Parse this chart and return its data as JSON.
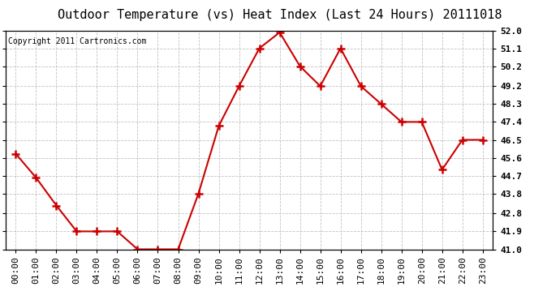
{
  "title": "Outdoor Temperature (vs) Heat Index (Last 24 Hours) 20111018",
  "copyright": "Copyright 2011 Cartronics.com",
  "x_labels": [
    "00:00",
    "01:00",
    "02:00",
    "03:00",
    "04:00",
    "05:00",
    "06:00",
    "07:00",
    "08:00",
    "09:00",
    "10:00",
    "11:00",
    "12:00",
    "13:00",
    "14:00",
    "15:00",
    "16:00",
    "17:00",
    "18:00",
    "19:00",
    "20:00",
    "21:00",
    "22:00",
    "23:00"
  ],
  "y_values": [
    45.8,
    44.6,
    43.2,
    41.9,
    41.9,
    41.9,
    41.0,
    41.0,
    41.0,
    43.8,
    47.2,
    49.2,
    51.1,
    51.9,
    50.2,
    49.2,
    51.1,
    49.2,
    48.3,
    47.4,
    47.4,
    45.0,
    46.5,
    46.5
  ],
  "ylim_min": 41.0,
  "ylim_max": 52.0,
  "yticks": [
    41.0,
    41.9,
    42.8,
    43.8,
    44.7,
    45.6,
    46.5,
    47.4,
    48.3,
    49.2,
    50.2,
    51.1,
    52.0
  ],
  "ytick_labels": [
    "41.0",
    "41.9",
    "42.8",
    "43.8",
    "44.7",
    "45.6",
    "46.5",
    "47.4",
    "48.3",
    "49.2",
    "50.2",
    "51.1",
    "52.0"
  ],
  "line_color": "#cc0000",
  "marker": "+",
  "marker_color": "#cc0000",
  "bg_color": "#ffffff",
  "grid_color": "#bbbbbb",
  "title_fontsize": 11,
  "copyright_fontsize": 7,
  "tick_fontsize": 8,
  "fig_width": 6.9,
  "fig_height": 3.75,
  "dpi": 100
}
